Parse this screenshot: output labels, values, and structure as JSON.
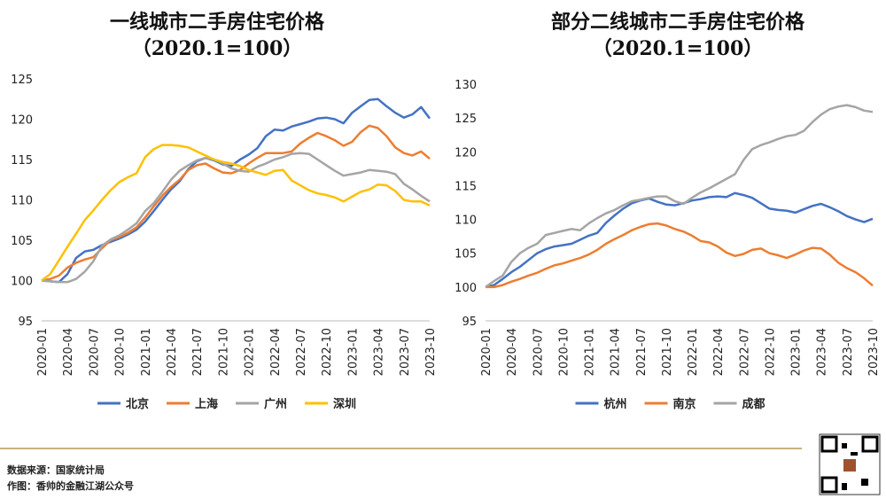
{
  "chart_data": [
    {
      "type": "line",
      "title": "一线城市二手房住宅价格",
      "subtitle": "（2020.1=100）",
      "categories": [
        "2020-01",
        null,
        null,
        "2020-04",
        null,
        null,
        "2020-07",
        null,
        null,
        "2020-10",
        null,
        null,
        "2021-01",
        null,
        null,
        "2021-04",
        null,
        null,
        "2021-07",
        null,
        null,
        "2021-10",
        null,
        null,
        "2022-01",
        null,
        null,
        "2022-04",
        null,
        null,
        "2022-07",
        null,
        null,
        "2022-10",
        null,
        null,
        "2023-01",
        null,
        null,
        "2023-04",
        null,
        null,
        "2023-07",
        null,
        null,
        "2023-10"
      ],
      "ylim": [
        95,
        125
      ],
      "yticks": [
        95,
        100,
        105,
        110,
        115,
        120,
        125
      ],
      "series": [
        {
          "name": "北京",
          "color": "#4472c4",
          "values": [
            100,
            99.9,
            99.8,
            100.8,
            102.8,
            103.6,
            103.8,
            104.4,
            104.8,
            105.2,
            105.7,
            106.3,
            107.3,
            108.6,
            110,
            111.3,
            112.3,
            113.8,
            114.8,
            115.2,
            114.9,
            114.4,
            114.2,
            115,
            115.6,
            116.4,
            117.9,
            118.7,
            118.6,
            119.1,
            119.4,
            119.7,
            120.1,
            120.2,
            120,
            119.5,
            120.8,
            121.6,
            122.4,
            122.5,
            121.6,
            120.8,
            120.2,
            120.6,
            121.5,
            120.1
          ]
        },
        {
          "name": "上海",
          "color": "#ed7d31",
          "values": [
            100,
            100.2,
            100.6,
            101.6,
            102.2,
            102.6,
            102.9,
            104,
            105,
            105.4,
            105.9,
            106.6,
            107.8,
            109.2,
            110.5,
            111.6,
            112.5,
            113.7,
            114.3,
            114.5,
            113.9,
            113.4,
            113.3,
            113.7,
            114.5,
            115.2,
            115.8,
            115.8,
            115.8,
            116,
            117,
            117.7,
            118.3,
            117.9,
            117.4,
            116.7,
            117.2,
            118.4,
            119.2,
            118.9,
            117.9,
            116.5,
            115.8,
            115.5,
            116,
            115.1
          ]
        },
        {
          "name": "广州",
          "color": "#a5a5a5",
          "values": [
            100,
            99.9,
            99.8,
            99.8,
            100.2,
            101.1,
            102.4,
            104.3,
            105.1,
            105.6,
            106.3,
            107.1,
            108.6,
            109.6,
            111,
            112.5,
            113.6,
            114.3,
            114.9,
            115.2,
            115,
            114.5,
            113.9,
            113.6,
            113.5,
            114.1,
            114.5,
            115,
            115.3,
            115.7,
            115.8,
            115.7,
            115,
            114.3,
            113.6,
            113,
            113.2,
            113.4,
            113.7,
            113.6,
            113.5,
            113.2,
            112,
            111.3,
            110.5,
            109.8
          ]
        },
        {
          "name": "深圳",
          "color": "#ffc000",
          "values": [
            100,
            100.8,
            102.5,
            104.2,
            105.8,
            107.5,
            108.7,
            110,
            111.2,
            112.2,
            112.8,
            113.3,
            115.3,
            116.3,
            116.8,
            116.8,
            116.7,
            116.5,
            116,
            115.5,
            115,
            114.7,
            114.5,
            114.2,
            113.7,
            113.4,
            113.1,
            113.6,
            113.7,
            112.4,
            111.8,
            111.2,
            110.8,
            110.6,
            110.3,
            109.8,
            110.4,
            111,
            111.3,
            111.9,
            111.8,
            111.1,
            110,
            109.8,
            109.8,
            109.3
          ]
        }
      ]
    },
    {
      "type": "line",
      "title": "部分二线城市二手房住宅价格",
      "subtitle": "（2020.1=100）",
      "categories": [
        "2020-01",
        null,
        null,
        "2020-04",
        null,
        null,
        "2020-07",
        null,
        null,
        "2020-10",
        null,
        null,
        "2021-01",
        null,
        null,
        "2021-04",
        null,
        null,
        "2021-07",
        null,
        null,
        "2021-10",
        null,
        null,
        "2022-01",
        null,
        null,
        "2022-04",
        null,
        null,
        "2022-07",
        null,
        null,
        "2022-10",
        null,
        null,
        "2023-01",
        null,
        null,
        "2023-04",
        null,
        null,
        "2023-07",
        null,
        null,
        "2023-10"
      ],
      "ylim": [
        95,
        130
      ],
      "yticks": [
        95,
        100,
        105,
        110,
        115,
        120,
        125,
        130
      ],
      "series": [
        {
          "name": "杭州",
          "color": "#4472c4",
          "values": [
            100,
            100.3,
            101.2,
            102.2,
            103,
            104,
            105,
            105.6,
            106,
            106.2,
            106.4,
            107,
            107.6,
            108,
            109.5,
            110.6,
            111.6,
            112.4,
            112.8,
            113.1,
            112.6,
            112.2,
            112.1,
            112.4,
            112.8,
            113,
            113.3,
            113.4,
            113.3,
            113.9,
            113.6,
            113.2,
            112.4,
            111.6,
            111.4,
            111.3,
            111,
            111.5,
            112,
            112.3,
            111.8,
            111.2,
            110.5,
            110,
            109.6,
            110.1
          ]
        },
        {
          "name": "南京",
          "color": "#ed7d31",
          "values": [
            100,
            100,
            100.3,
            100.8,
            101.2,
            101.7,
            102.1,
            102.7,
            103.2,
            103.5,
            103.9,
            104.3,
            104.8,
            105.5,
            106.4,
            107.1,
            107.7,
            108.4,
            108.9,
            109.3,
            109.4,
            109.1,
            108.6,
            108.2,
            107.6,
            106.8,
            106.6,
            106,
            105.1,
            104.6,
            104.9,
            105.5,
            105.7,
            105,
            104.7,
            104.3,
            104.8,
            105.4,
            105.8,
            105.7,
            104.8,
            103.6,
            102.8,
            102.2,
            101.3,
            100.2
          ]
        },
        {
          "name": "成都",
          "color": "#a5a5a5",
          "values": [
            100,
            100.9,
            101.7,
            103.7,
            105,
            105.8,
            106.4,
            107.7,
            108,
            108.3,
            108.6,
            108.4,
            109.4,
            110.2,
            110.9,
            111.4,
            112.1,
            112.7,
            112.9,
            113.2,
            113.4,
            113.4,
            112.7,
            112.3,
            113.2,
            114,
            114.6,
            115.3,
            116,
            116.7,
            118.8,
            120.4,
            121,
            121.4,
            121.9,
            122.3,
            122.5,
            123.1,
            124.4,
            125.5,
            126.3,
            126.7,
            126.9,
            126.6,
            126.1,
            125.9
          ]
        }
      ]
    }
  ],
  "footer": {
    "source": "数据来源：国家统计局",
    "author": "作图：香帅的金融江湖公众号"
  }
}
